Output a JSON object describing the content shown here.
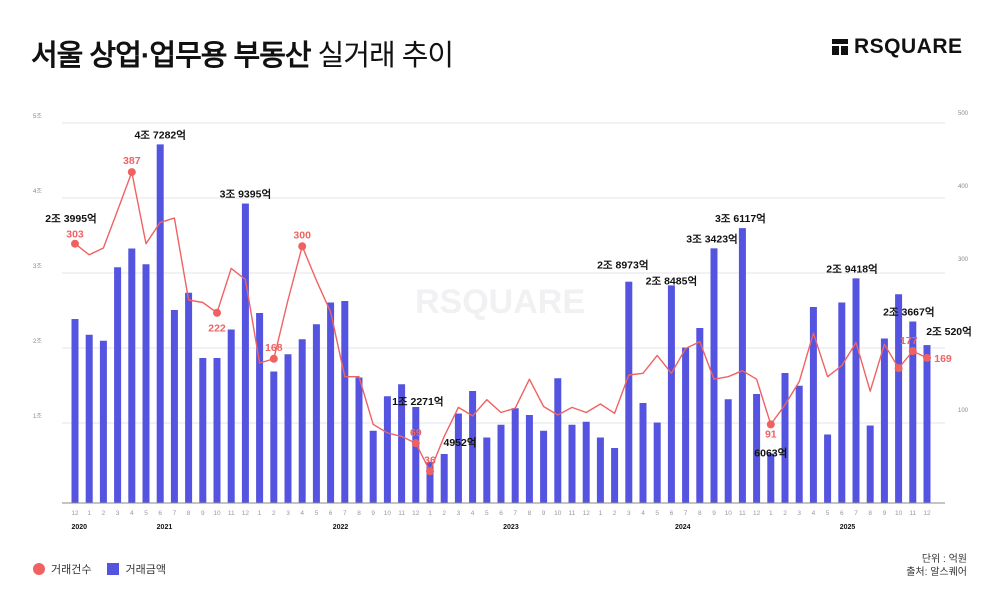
{
  "header": {
    "title_bold": "서울 상업·업무용 부동산",
    "title_light": "실거래 추이",
    "logo_text": "RSQUARE"
  },
  "watermark": "RSQUARE",
  "legend": {
    "count_label": "거래건수",
    "amount_label": "거래금액"
  },
  "notes": {
    "unit": "단위 : 억원",
    "source": "출처: 알스퀘어"
  },
  "colors": {
    "bar": "#5454E0",
    "line": "#F06262",
    "grid": "#E6E6EE"
  },
  "chart_data": {
    "type": "bar+line",
    "left_axis": {
      "ticks": [
        "5조",
        "4조",
        "3조",
        "2조",
        "1조"
      ],
      "range_eok": [
        0,
        50000
      ]
    },
    "right_axis": {
      "ticks": [
        "500",
        "400",
        "300",
        "100"
      ],
      "range": [
        0,
        500
      ]
    },
    "grid": true,
    "legend_placement": "bottom-left",
    "months": [
      "12",
      "1",
      "2",
      "3",
      "4",
      "5",
      "6",
      "7",
      "8",
      "9",
      "10",
      "11",
      "12",
      "1",
      "2",
      "3",
      "4",
      "5",
      "6",
      "7",
      "8",
      "9",
      "10",
      "11",
      "12",
      "1",
      "2",
      "3",
      "4",
      "5",
      "6",
      "7",
      "8",
      "9",
      "10",
      "11",
      "12",
      "1",
      "2",
      "3",
      "4",
      "5",
      "6",
      "7",
      "8",
      "9",
      "10",
      "11",
      "12",
      "1",
      "2",
      "3",
      "4",
      "5",
      "6",
      "7",
      "8",
      "9",
      "10",
      "11",
      "12"
    ],
    "years": [
      "2020",
      "2021",
      "2022",
      "2023",
      "2024",
      "2025"
    ],
    "series": [
      {
        "name": "거래금액",
        "type": "bar",
        "unit": "억원",
        "values": [
          23995,
          21900,
          21100,
          30900,
          33400,
          31300,
          47282,
          25200,
          27500,
          18800,
          18800,
          22600,
          39395,
          24800,
          17000,
          19300,
          21300,
          23300,
          26200,
          26400,
          16200,
          9100,
          13700,
          15300,
          12271,
          4952,
          6000,
          11400,
          14400,
          8200,
          9900,
          12100,
          11200,
          9100,
          16100,
          9900,
          10300,
          8200,
          6800,
          28973,
          12800,
          10200,
          28485,
          20200,
          22800,
          33423,
          13300,
          36117,
          14000,
          6063,
          16800,
          15100,
          25600,
          8600,
          26200,
          29418,
          9800,
          21400,
          27300,
          23667,
          20520
        ]
      },
      {
        "name": "거래건수",
        "type": "line",
        "values": [
          303,
          290,
          298,
          342,
          387,
          303,
          328,
          333,
          237,
          234,
          222,
          274,
          261,
          163,
          168,
          237,
          300,
          260,
          223,
          147,
          147,
          91,
          81,
          77,
          69,
          36,
          77,
          111,
          101,
          120,
          105,
          110,
          144,
          112,
          102,
          111,
          105,
          115,
          104,
          149,
          151,
          172,
          151,
          180,
          188,
          144,
          147,
          154,
          144,
          91,
          114,
          141,
          198,
          147,
          160,
          187,
          130,
          185,
          157,
          177,
          169
        ]
      }
    ],
    "bar_labels": [
      {
        "index": 0,
        "text": "2조 3995억"
      },
      {
        "index": 6,
        "text": "4조 7282억"
      },
      {
        "index": 12,
        "text": "3조 9395억"
      },
      {
        "index": 24,
        "text": "1조 2271억"
      },
      {
        "index": 25,
        "text": "4952억"
      },
      {
        "index": 39,
        "text": "2조 8973억"
      },
      {
        "index": 42,
        "text": "2조 8485억"
      },
      {
        "index": 45,
        "text": "3조 3423억"
      },
      {
        "index": 47,
        "text": "3조 6117억"
      },
      {
        "index": 49,
        "text": "6063억"
      },
      {
        "index": 55,
        "text": "2조 9418억"
      },
      {
        "index": 59,
        "text": "2조 3667억"
      },
      {
        "index": 60,
        "text": "2조 520억"
      }
    ],
    "line_labels": [
      {
        "index": 0,
        "text": "303"
      },
      {
        "index": 4,
        "text": "387"
      },
      {
        "index": 10,
        "text": "222"
      },
      {
        "index": 14,
        "text": "168"
      },
      {
        "index": 16,
        "text": "300"
      },
      {
        "index": 24,
        "text": "69"
      },
      {
        "index": 25,
        "text": "36"
      },
      {
        "index": 49,
        "text": "91"
      },
      {
        "index": 59,
        "text": "177"
      },
      {
        "index": 60,
        "text": "169"
      }
    ],
    "line_markers": [
      0,
      4,
      10,
      14,
      16,
      24,
      25,
      49,
      58,
      59,
      60
    ]
  }
}
